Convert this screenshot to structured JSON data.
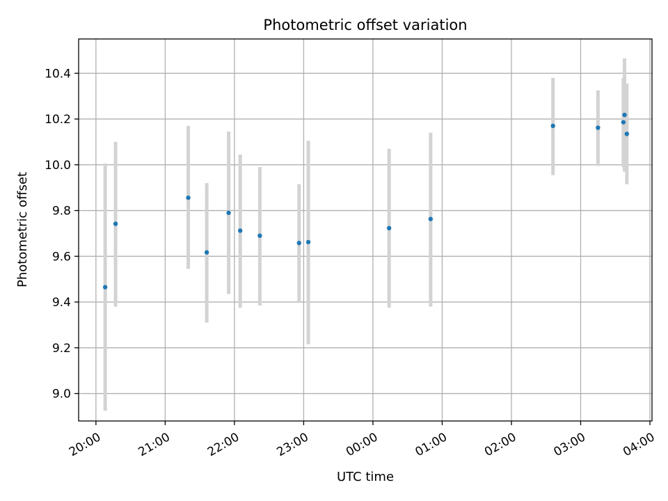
{
  "chart_data": {
    "type": "scatter",
    "title": "Photometric offset variation",
    "xlabel": "UTC time",
    "ylabel": "Photometric offset",
    "x_ticks": [
      "20:00",
      "21:00",
      "22:00",
      "23:00",
      "00:00",
      "01:00",
      "02:00",
      "03:00",
      "04:00"
    ],
    "y_ticks": [
      "9.0",
      "9.2",
      "9.4",
      "9.6",
      "9.8",
      "10.0",
      "10.2",
      "10.4"
    ],
    "xlim_hours": [
      19.75,
      28.03
    ],
    "ylim": [
      8.88,
      10.55
    ],
    "grid": true,
    "points": [
      {
        "t": "20:08",
        "y": 9.465,
        "lo": 8.925,
        "hi": 10.005
      },
      {
        "t": "20:17",
        "y": 9.742,
        "lo": 9.38,
        "hi": 10.1
      },
      {
        "t": "21:20",
        "y": 9.856,
        "lo": 9.545,
        "hi": 10.17
      },
      {
        "t": "21:36",
        "y": 9.617,
        "lo": 9.31,
        "hi": 9.92
      },
      {
        "t": "21:55",
        "y": 9.79,
        "lo": 9.435,
        "hi": 10.145
      },
      {
        "t": "22:05",
        "y": 9.712,
        "lo": 9.375,
        "hi": 10.045
      },
      {
        "t": "22:22",
        "y": 9.69,
        "lo": 9.385,
        "hi": 9.99
      },
      {
        "t": "22:56",
        "y": 9.658,
        "lo": 9.4,
        "hi": 9.915
      },
      {
        "t": "23:04",
        "y": 9.662,
        "lo": 9.215,
        "hi": 10.105
      },
      {
        "t": "00:14",
        "y": 9.723,
        "lo": 9.375,
        "hi": 10.07
      },
      {
        "t": "00:50",
        "y": 9.763,
        "lo": 9.38,
        "hi": 10.14
      },
      {
        "t": "02:36",
        "y": 10.17,
        "lo": 9.955,
        "hi": 10.38
      },
      {
        "t": "03:15",
        "y": 10.162,
        "lo": 9.995,
        "hi": 10.325
      },
      {
        "t": "03:37",
        "y": 10.186,
        "lo": 9.99,
        "hi": 10.38
      },
      {
        "t": "03:38",
        "y": 10.218,
        "lo": 9.97,
        "hi": 10.465
      },
      {
        "t": "03:40",
        "y": 10.135,
        "lo": 9.915,
        "hi": 10.355
      }
    ],
    "marker_color": "#1f77b4",
    "errorbar_color": "#d3d3d3"
  }
}
